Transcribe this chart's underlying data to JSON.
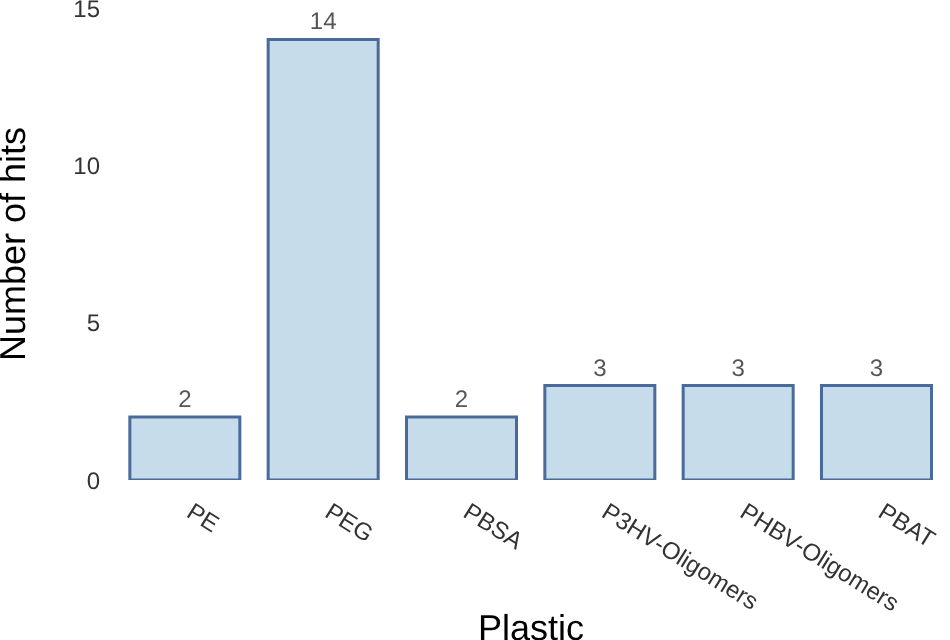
{
  "chart_data": {
    "type": "bar",
    "xlabel": "Plastic",
    "ylabel": "Number of hits",
    "categories": [
      "PE",
      "PEG",
      "PBSA",
      "P3HV-Oligomers",
      "PHBV-Oligomers",
      "PBAT"
    ],
    "values": [
      2,
      14,
      2,
      3,
      3,
      3
    ],
    "color": "#c6dcea",
    "ylim": [
      0,
      15
    ],
    "yticks": [
      0,
      5,
      10,
      15
    ],
    "grid": false,
    "data_labels": true
  }
}
